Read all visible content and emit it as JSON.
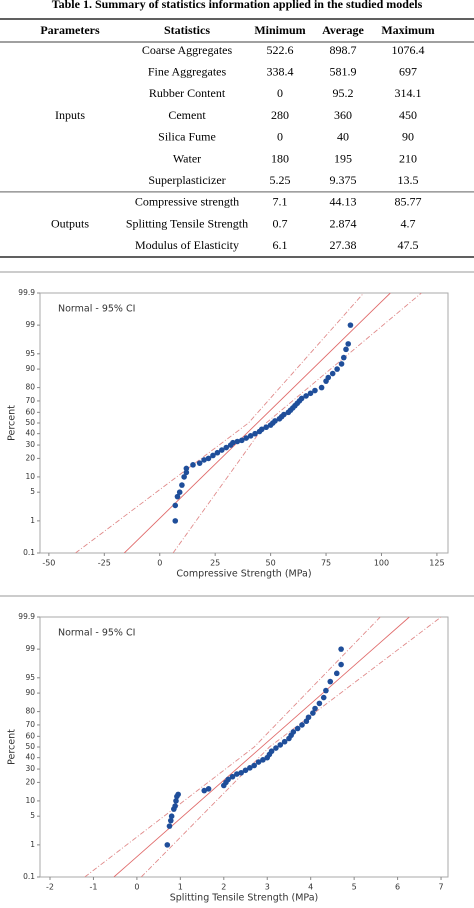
{
  "table": {
    "title": "Table 1. Summary of statistics information applied in the studied models",
    "headers": [
      "Parameters",
      "Statistics",
      "Minimum",
      "Average",
      "Maximum"
    ],
    "groups": [
      {
        "label": "Inputs",
        "rows": [
          [
            "Coarse Aggregates",
            522.6,
            898.7,
            1076.4
          ],
          [
            "Fine Aggregates",
            338.4,
            581.9,
            697
          ],
          [
            "Rubber Content",
            0,
            95.2,
            314.1
          ],
          [
            "Cement",
            280,
            360,
            450
          ],
          [
            "Silica Fume",
            0,
            40,
            90
          ],
          [
            "Water",
            180,
            195,
            210
          ],
          [
            "Superplasticizer",
            5.25,
            9.375,
            13.5
          ]
        ]
      },
      {
        "label": "Outputs",
        "rows": [
          [
            "Compressive strength",
            7.1,
            44.13,
            85.77
          ],
          [
            "Splitting Tensile Strength",
            0.7,
            2.874,
            4.7
          ],
          [
            "Modulus of Elasticity",
            6.1,
            27.38,
            47.5
          ]
        ]
      }
    ]
  },
  "chart_data": [
    {
      "type": "probability",
      "annotation": "Normal - 95% CI",
      "x_label": "Compressive Strength (MPa)",
      "y_label": "Percent",
      "xlim": [
        -54,
        130
      ],
      "xticks": [
        -50,
        -25,
        0,
        25,
        50,
        75,
        100,
        125
      ],
      "ylim": [
        0.1,
        99.9
      ],
      "yticks": [
        0.1,
        1,
        5,
        10,
        20,
        30,
        40,
        50,
        60,
        70,
        80,
        90,
        95,
        99,
        99.9
      ],
      "color": "#1f4e9a",
      "x": [
        7,
        7,
        8,
        9,
        10,
        11,
        12,
        12,
        15,
        18,
        20,
        22,
        24,
        26,
        28,
        30,
        32,
        33,
        35,
        37,
        39,
        41,
        43,
        45,
        46,
        48,
        50,
        51,
        52,
        54,
        55,
        56,
        58,
        59,
        60,
        61,
        62,
        63,
        64,
        66,
        68,
        70,
        73,
        75,
        76,
        78,
        80,
        82,
        83,
        84,
        85,
        86
      ],
      "values": [
        1,
        2.5,
        4,
        5,
        7,
        10,
        12,
        14,
        16,
        17,
        19,
        20,
        22,
        24,
        26,
        28,
        30,
        32,
        33,
        34,
        36,
        38,
        40,
        42,
        44,
        46,
        48,
        50,
        52,
        54,
        56,
        58,
        60,
        62,
        64,
        66,
        68,
        70,
        72,
        74,
        76,
        78,
        80,
        84,
        86,
        88,
        90,
        92,
        94,
        96,
        97,
        99
      ],
      "lines": [
        {
          "x": [
            -16,
            104
          ],
          "values": [
            0.1,
            99.9
          ],
          "color": "#e06a6a",
          "dashed": false
        },
        {
          "x": [
            -38,
            40,
            92
          ],
          "values": [
            0.1,
            50,
            99.9
          ],
          "color": "#e08a8a",
          "dashed": true
        },
        {
          "x": [
            6,
            48,
            118
          ],
          "values": [
            0.1,
            50,
            99.9
          ],
          "color": "#e08a8a",
          "dashed": true
        }
      ]
    },
    {
      "type": "probability",
      "annotation": "Normal - 95% CI",
      "x_label": "Splitting Tensile Strength (MPa)",
      "y_label": "Percent",
      "xlim": [
        -2.23,
        7.16
      ],
      "xticks": [
        -2,
        -1,
        0,
        1,
        2,
        3,
        4,
        5,
        6,
        7
      ],
      "ylim": [
        0.1,
        99.9
      ],
      "yticks": [
        0.1,
        1,
        5,
        10,
        20,
        30,
        40,
        50,
        60,
        70,
        80,
        90,
        95,
        99,
        99.9
      ],
      "color": "#1f4e9a",
      "x": [
        0.7,
        0.75,
        0.78,
        0.8,
        0.85,
        0.88,
        0.9,
        0.92,
        0.95,
        1.55,
        1.65,
        2.0,
        2.05,
        2.1,
        2.2,
        2.3,
        2.4,
        2.5,
        2.6,
        2.7,
        2.8,
        2.9,
        3.0,
        3.05,
        3.1,
        3.2,
        3.3,
        3.4,
        3.5,
        3.55,
        3.6,
        3.7,
        3.8,
        3.9,
        3.95,
        4.05,
        4.1,
        4.2,
        4.3,
        4.35,
        4.45,
        4.6,
        4.7,
        4.7
      ],
      "values": [
        1,
        3,
        4,
        5,
        7,
        8,
        10,
        12,
        13,
        15,
        16,
        18,
        20,
        22,
        24,
        26,
        27,
        29,
        31,
        33,
        36,
        38,
        40,
        43,
        46,
        49,
        52,
        55,
        58,
        61,
        64,
        67,
        70,
        73,
        76,
        79,
        82,
        85,
        88,
        91,
        94,
        96,
        97.5,
        99
      ],
      "lines": [
        {
          "x": [
            -0.53,
            6.27
          ],
          "values": [
            0.1,
            99.9
          ],
          "color": "#e06a6a",
          "dashed": false
        },
        {
          "x": [
            -1.2,
            2.7,
            5.6
          ],
          "values": [
            0.1,
            50,
            99.9
          ],
          "color": "#e08a8a",
          "dashed": true
        },
        {
          "x": [
            0.1,
            3.05,
            7.0
          ],
          "values": [
            0.1,
            50,
            99.9
          ],
          "color": "#e08a8a",
          "dashed": true
        }
      ]
    }
  ]
}
